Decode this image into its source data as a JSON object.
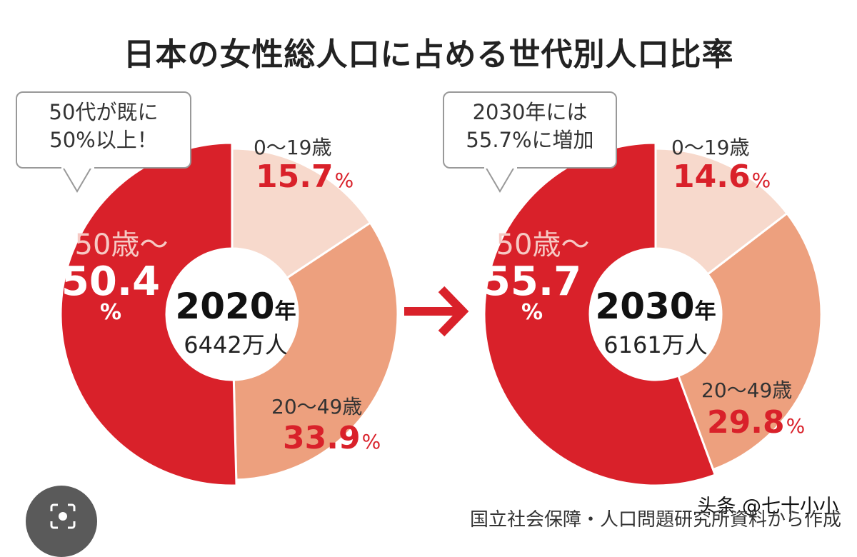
{
  "chart_data": [
    {
      "type": "pie",
      "variant": "donut",
      "title": "日本の女性総人口に占める世代別人口比率",
      "center_year": "2020",
      "year_suffix": "年",
      "center_total": "6442万人",
      "callout": [
        "50代が既に",
        "50%以上！"
      ],
      "categories": [
        "50歳～",
        "0～19歳",
        "20～49歳"
      ],
      "values": [
        50.4,
        15.7,
        33.9
      ],
      "colors": [
        "#d9212a",
        "#f7d9cc",
        "#eda07e"
      ]
    },
    {
      "type": "pie",
      "variant": "donut",
      "center_year": "2030",
      "year_suffix": "年",
      "center_total": "6161万人",
      "callout": [
        "2030年には",
        "55.7%に増加"
      ],
      "categories": [
        "50歳～",
        "0～19歳",
        "20～49歳"
      ],
      "values": [
        55.7,
        14.6,
        29.8
      ],
      "colors": [
        "#d9212a",
        "#f7d9cc",
        "#eda07e"
      ]
    }
  ],
  "labels": {
    "title": "日本の女性総人口に占める世代別人口比率",
    "unit": "%",
    "left": {
      "senior_label": "50歳～",
      "senior_value": "50.4",
      "youth_label": "0～19歳",
      "youth_value": "15.7",
      "mid_label": "20～49歳",
      "mid_value": "33.9"
    },
    "right": {
      "senior_label": "50歳～",
      "senior_value": "55.7",
      "youth_label": "0～19歳",
      "youth_value": "14.6",
      "mid_label": "20～49歳",
      "mid_value": "29.8"
    },
    "source": "国立社会保障・人口問題研究所資料から作成",
    "watermark": "头条 @七十小小"
  },
  "style": {
    "accent": "#d9212a",
    "arrow_color": "#d9212a",
    "lens_icon": "lens-search-icon"
  }
}
